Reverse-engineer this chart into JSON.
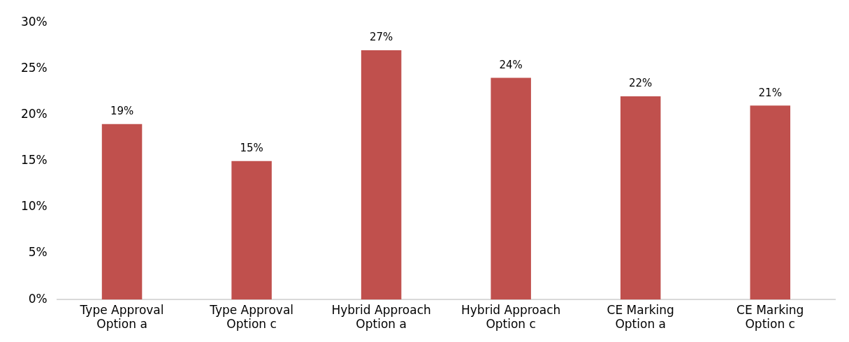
{
  "chart_data": {
    "type": "bar",
    "categories": [
      "Type Approval Option a",
      "Type Approval Option c",
      "Hybrid Approach Option a",
      "Hybrid Approach Option c",
      "CE Marking Option a",
      "CE Marking Option c"
    ],
    "values": [
      19,
      15,
      27,
      24,
      22,
      21
    ],
    "color": "#c0504d",
    "value_labels": [
      "19%",
      "15%",
      "27%",
      "24%",
      "22%",
      "21%"
    ],
    "ylim": [
      0,
      30
    ],
    "yticks": [
      {
        "value": 0,
        "label": "0%"
      },
      {
        "value": 5,
        "label": "5%"
      },
      {
        "value": 10,
        "label": "10%"
      },
      {
        "value": 15,
        "label": "15%"
      },
      {
        "value": 20,
        "label": "20%"
      },
      {
        "value": 25,
        "label": "25%"
      },
      {
        "value": 30,
        "label": "30%"
      }
    ],
    "grid": false,
    "legend": false
  }
}
